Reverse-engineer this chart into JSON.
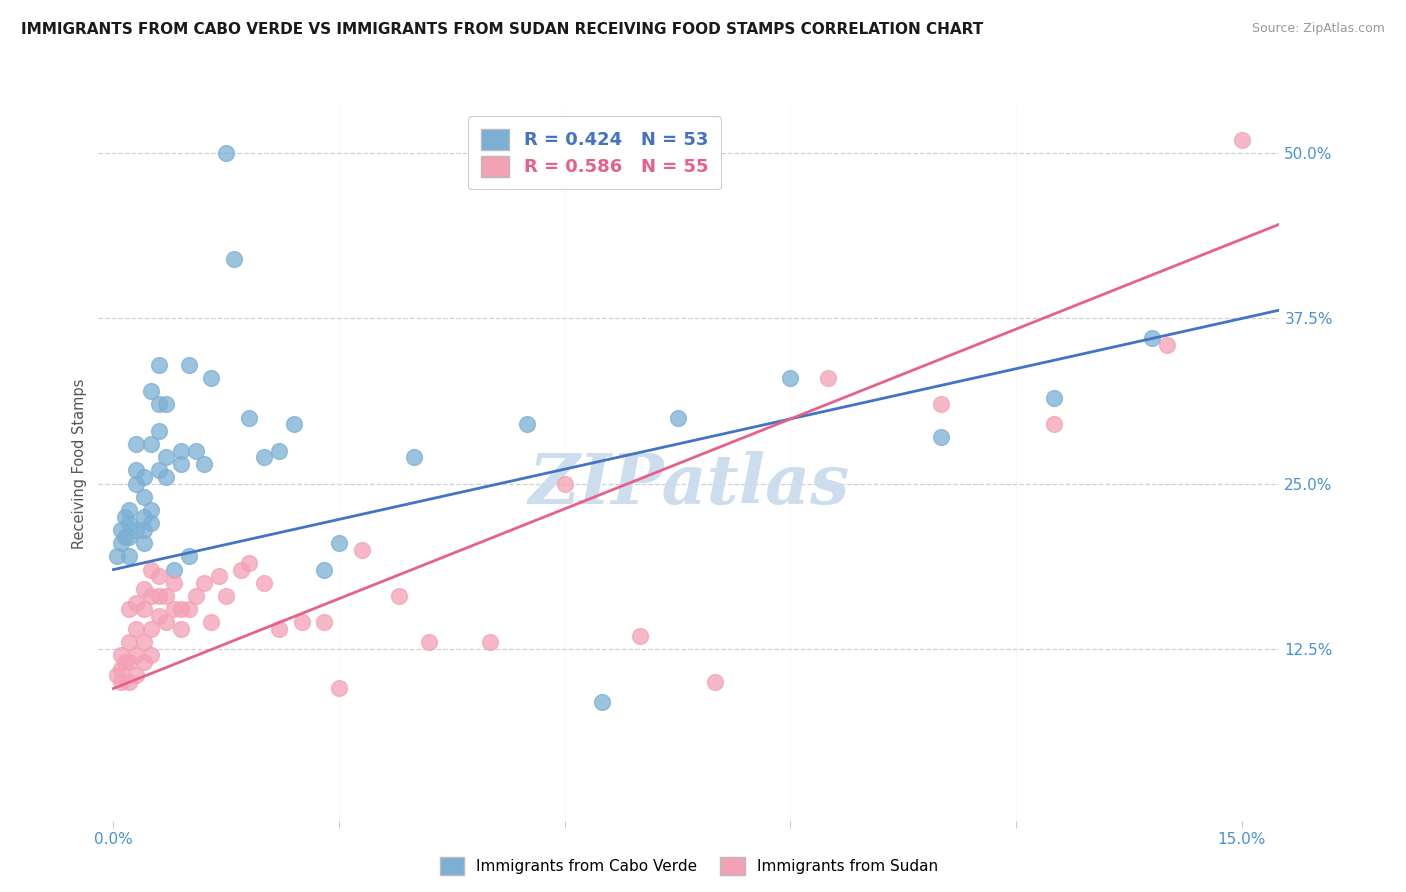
{
  "title": "IMMIGRANTS FROM CABO VERDE VS IMMIGRANTS FROM SUDAN RECEIVING FOOD STAMPS CORRELATION CHART",
  "source": "Source: ZipAtlas.com",
  "ylabel": "Receiving Food Stamps",
  "x_ticks": [
    0.0,
    0.03,
    0.06,
    0.09,
    0.12,
    0.15
  ],
  "x_tick_labels": [
    "0.0%",
    "",
    "",
    "",
    "",
    "15.0%"
  ],
  "y_ticks": [
    0.0,
    0.125,
    0.25,
    0.375,
    0.5
  ],
  "y_tick_labels": [
    "",
    "12.5%",
    "25.0%",
    "37.5%",
    "50.0%"
  ],
  "xlim": [
    -0.002,
    0.155
  ],
  "ylim": [
    -0.005,
    0.535
  ],
  "cabo_verde_R": 0.424,
  "cabo_verde_N": 53,
  "sudan_R": 0.586,
  "sudan_N": 55,
  "cabo_verde_color": "#7bafd4",
  "sudan_color": "#f4a0b5",
  "cabo_verde_line_color": "#4472c4",
  "sudan_line_color": "#e8608a",
  "watermark": "ZIPatlas",
  "watermark_color": "#ccdded",
  "cabo_verde_x": [
    0.0005,
    0.001,
    0.001,
    0.0015,
    0.0015,
    0.002,
    0.002,
    0.002,
    0.002,
    0.003,
    0.003,
    0.003,
    0.003,
    0.004,
    0.004,
    0.004,
    0.004,
    0.004,
    0.005,
    0.005,
    0.005,
    0.005,
    0.006,
    0.006,
    0.006,
    0.006,
    0.007,
    0.007,
    0.007,
    0.008,
    0.009,
    0.009,
    0.01,
    0.01,
    0.011,
    0.012,
    0.013,
    0.015,
    0.016,
    0.018,
    0.02,
    0.022,
    0.024,
    0.028,
    0.03,
    0.04,
    0.055,
    0.065,
    0.075,
    0.09,
    0.11,
    0.125,
    0.138
  ],
  "cabo_verde_y": [
    0.195,
    0.205,
    0.215,
    0.21,
    0.225,
    0.195,
    0.21,
    0.22,
    0.23,
    0.215,
    0.25,
    0.26,
    0.28,
    0.205,
    0.215,
    0.225,
    0.24,
    0.255,
    0.22,
    0.23,
    0.28,
    0.32,
    0.26,
    0.29,
    0.31,
    0.34,
    0.255,
    0.27,
    0.31,
    0.185,
    0.265,
    0.275,
    0.195,
    0.34,
    0.275,
    0.265,
    0.33,
    0.5,
    0.42,
    0.3,
    0.27,
    0.275,
    0.295,
    0.185,
    0.205,
    0.27,
    0.295,
    0.085,
    0.3,
    0.33,
    0.285,
    0.315,
    0.36
  ],
  "sudan_x": [
    0.0005,
    0.001,
    0.001,
    0.001,
    0.0015,
    0.002,
    0.002,
    0.002,
    0.002,
    0.003,
    0.003,
    0.003,
    0.003,
    0.004,
    0.004,
    0.004,
    0.004,
    0.005,
    0.005,
    0.005,
    0.005,
    0.006,
    0.006,
    0.006,
    0.007,
    0.007,
    0.008,
    0.008,
    0.009,
    0.009,
    0.01,
    0.011,
    0.012,
    0.013,
    0.014,
    0.015,
    0.017,
    0.018,
    0.02,
    0.022,
    0.025,
    0.028,
    0.03,
    0.033,
    0.038,
    0.042,
    0.05,
    0.06,
    0.07,
    0.08,
    0.095,
    0.11,
    0.125,
    0.14,
    0.15
  ],
  "sudan_y": [
    0.105,
    0.1,
    0.11,
    0.12,
    0.115,
    0.1,
    0.115,
    0.13,
    0.155,
    0.105,
    0.12,
    0.14,
    0.16,
    0.115,
    0.13,
    0.155,
    0.17,
    0.12,
    0.14,
    0.165,
    0.185,
    0.15,
    0.165,
    0.18,
    0.145,
    0.165,
    0.155,
    0.175,
    0.14,
    0.155,
    0.155,
    0.165,
    0.175,
    0.145,
    0.18,
    0.165,
    0.185,
    0.19,
    0.175,
    0.14,
    0.145,
    0.145,
    0.095,
    0.2,
    0.165,
    0.13,
    0.13,
    0.25,
    0.135,
    0.1,
    0.33,
    0.31,
    0.295,
    0.355,
    0.51
  ]
}
